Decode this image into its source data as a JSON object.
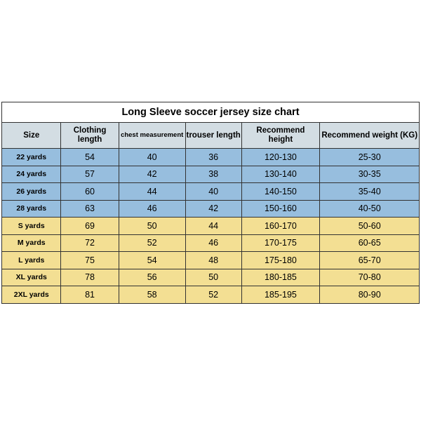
{
  "title": "Long Sleeve soccer jersey size chart",
  "columns": {
    "size": "Size",
    "clothing_length_1": "Clothing",
    "clothing_length_2": "length",
    "chest": "chest measurement",
    "trouser": "trouser length",
    "height_1": "Recommend",
    "height_2": "height",
    "weight": "Recommend weight (KG)"
  },
  "rows": [
    {
      "group": "blue",
      "size": "22 yards",
      "len": "54",
      "chest": "40",
      "trou": "36",
      "hgt": "120-130",
      "wgt": "25-30"
    },
    {
      "group": "blue",
      "size": "24 yards",
      "len": "57",
      "chest": "42",
      "trou": "38",
      "hgt": "130-140",
      "wgt": "30-35"
    },
    {
      "group": "blue",
      "size": "26 yards",
      "len": "60",
      "chest": "44",
      "trou": "40",
      "hgt": "140-150",
      "wgt": "35-40"
    },
    {
      "group": "blue",
      "size": "28 yards",
      "len": "63",
      "chest": "46",
      "trou": "42",
      "hgt": "150-160",
      "wgt": "40-50"
    },
    {
      "group": "yellow",
      "size": "S yards",
      "len": "69",
      "chest": "50",
      "trou": "44",
      "hgt": "160-170",
      "wgt": "50-60"
    },
    {
      "group": "yellow",
      "size": "M yards",
      "len": "72",
      "chest": "52",
      "trou": "46",
      "hgt": "170-175",
      "wgt": "60-65"
    },
    {
      "group": "yellow",
      "size": "L yards",
      "len": "75",
      "chest": "54",
      "trou": "48",
      "hgt": "175-180",
      "wgt": "65-70"
    },
    {
      "group": "yellow",
      "size": "XL yards",
      "len": "78",
      "chest": "56",
      "trou": "50",
      "hgt": "180-185",
      "wgt": "70-80"
    },
    {
      "group": "yellow",
      "size": "2XL yards",
      "len": "81",
      "chest": "58",
      "trou": "52",
      "hgt": "185-195",
      "wgt": "80-90"
    }
  ],
  "style": {
    "header_bg": "#d3dde3",
    "blue_bg": "#97bede",
    "yellow_bg": "#f3df93",
    "border": "#323232"
  }
}
